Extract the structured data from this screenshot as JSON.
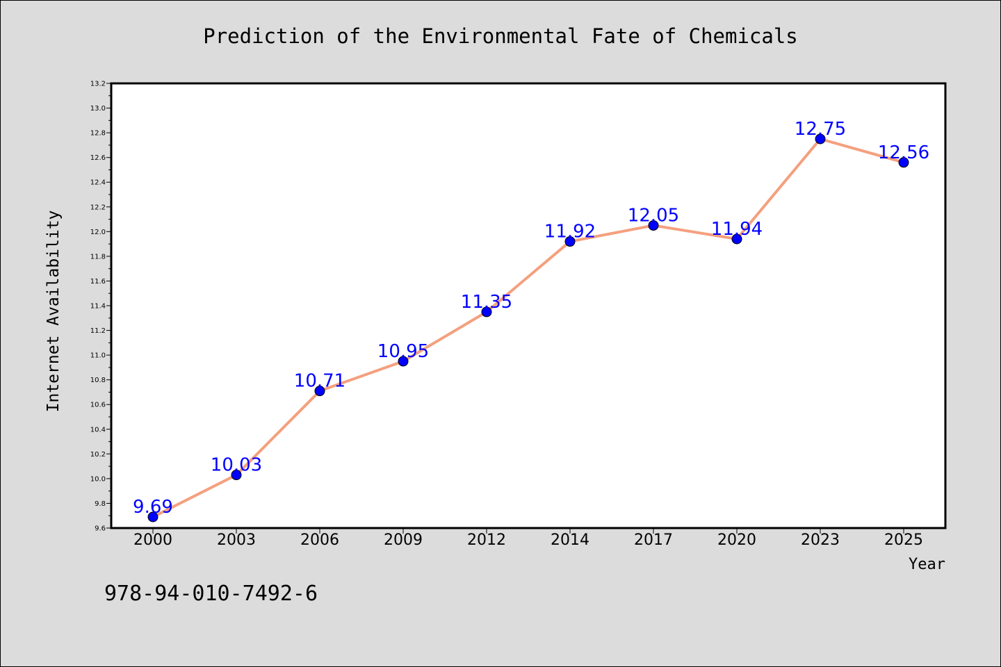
{
  "chart_data": {
    "type": "line",
    "title": "Prediction of the Environmental Fate of Chemicals",
    "xlabel": "Year",
    "ylabel": "Internet Availability",
    "categories": [
      "2000",
      "2003",
      "2006",
      "2009",
      "2012",
      "2014",
      "2017",
      "2020",
      "2023",
      "2025"
    ],
    "series": [
      {
        "values": [
          9.69,
          10.03,
          10.71,
          10.95,
          11.35,
          11.92,
          12.05,
          11.94,
          12.75,
          12.56
        ]
      }
    ],
    "data_labels": [
      "9.69",
      "10.03",
      "10.71",
      "10.95",
      "11.35",
      "11.92",
      "12.05",
      "11.94",
      "12.75",
      "12.56"
    ],
    "ylim": [
      9.6,
      13.2
    ],
    "yticks": [
      "9.6",
      "9.8",
      "10.0",
      "10.2",
      "10.4",
      "10.6",
      "10.8",
      "11.0",
      "11.2",
      "11.4",
      "11.6",
      "11.8",
      "12.0",
      "12.2",
      "12.4",
      "12.6",
      "12.8",
      "13.0",
      "13.2"
    ],
    "grid": false,
    "line_color": "#f4a07e",
    "marker_color": "#0000ff",
    "label_color": "#0000ff",
    "plot_background": "#ffffff",
    "figure_background": "#dcdcdc"
  },
  "footer_text": "978-94-010-7492-6"
}
